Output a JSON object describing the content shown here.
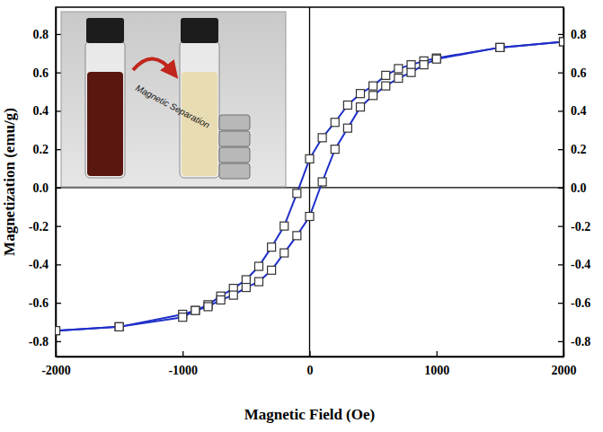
{
  "chart_data": {
    "type": "line",
    "x_label": "Magnetic Field (Oe)",
    "y_label": "Magnetization (emu/g)",
    "annotations": [
      "Magnetic Separation"
    ],
    "xlim": [
      -2000,
      2000
    ],
    "xticks": [
      -2000,
      -1000,
      0,
      1000,
      2000
    ],
    "ylim": [
      -0.88,
      0.94
    ],
    "yticks": [
      -0.8,
      -0.6,
      -0.4,
      -0.2,
      {
        "value": 0,
        "label": "0.0"
      },
      0.2,
      0.4,
      0.6,
      0.8
    ],
    "y2lim": [
      -0.88,
      0.94
    ],
    "y2ticks": [
      -0.8,
      -0.6,
      -0.4,
      -0.2,
      {
        "value": 0,
        "label": "0.0"
      },
      0.2,
      0.4,
      0.6,
      0.8
    ],
    "grid": false,
    "marker": "square",
    "series": [
      {
        "color": "#1f2fc8",
        "marker": "square",
        "line_style": "solid",
        "x": [
          2000,
          1500,
          1000,
          900,
          800,
          700,
          600,
          500,
          400,
          300,
          200,
          100,
          0,
          -100,
          -200,
          -300,
          -400,
          -500,
          -600,
          -700,
          -800,
          -900,
          -1000,
          -1500,
          -2000
        ],
        "values": [
          0.76,
          0.73,
          0.675,
          0.66,
          0.64,
          0.62,
          0.585,
          0.53,
          0.49,
          0.43,
          0.34,
          0.26,
          0.15,
          -0.03,
          -0.2,
          -0.31,
          -0.41,
          -0.48,
          -0.525,
          -0.565,
          -0.61,
          -0.64,
          -0.66,
          -0.725,
          -0.745
        ]
      },
      {
        "color": "#1f2fc8",
        "marker": "square",
        "line_style": "solid",
        "x": [
          -2000,
          -1500,
          -1000,
          -900,
          -800,
          -700,
          -600,
          -500,
          -400,
          -300,
          -200,
          -100,
          0,
          100,
          200,
          300,
          400,
          500,
          600,
          700,
          800,
          900,
          1000,
          1500,
          2000
        ],
        "values": [
          -0.745,
          -0.725,
          -0.675,
          -0.64,
          -0.62,
          -0.585,
          -0.56,
          -0.52,
          -0.49,
          -0.43,
          -0.34,
          -0.25,
          -0.15,
          0.03,
          0.2,
          0.31,
          0.42,
          0.48,
          0.53,
          0.57,
          0.6,
          0.64,
          0.67,
          0.73,
          0.76
        ]
      }
    ]
  }
}
